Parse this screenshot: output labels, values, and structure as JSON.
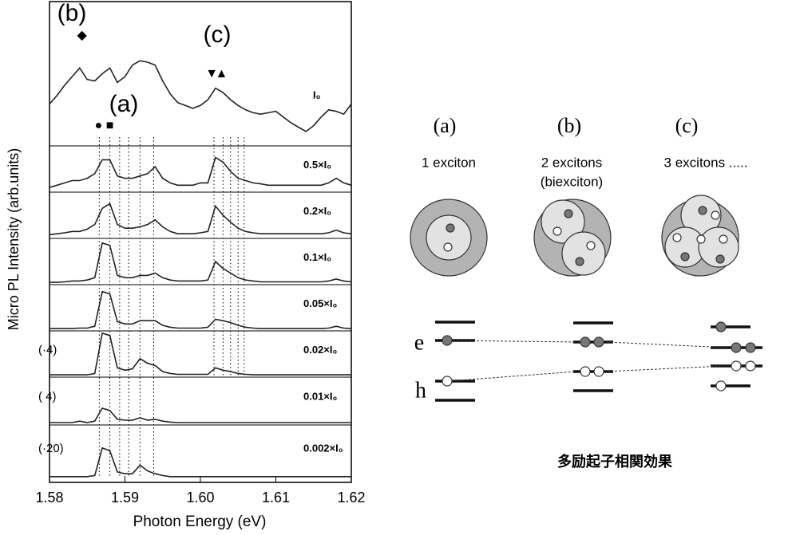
{
  "chart_data": {
    "type": "line",
    "x_label": "Photon Energy (eV)",
    "y_label": "Micro PL Intensity (arb.units)",
    "xlim": [
      1.58,
      1.62
    ],
    "xticks": [
      1.58,
      1.59,
      {
        "value": 1.6,
        "label": "1.60"
      },
      1.61,
      1.62
    ],
    "ylim": [
      0,
      100
    ],
    "color": "#222222",
    "x": [
      1.58,
      1.581,
      1.582,
      1.583,
      1.584,
      1.585,
      1.586,
      1.587,
      1.588,
      1.589,
      1.59,
      1.591,
      1.592,
      1.593,
      1.594,
      1.595,
      1.596,
      1.597,
      1.598,
      1.599,
      1.6,
      1.601,
      1.602,
      1.603,
      1.604,
      1.605,
      1.606,
      1.607,
      1.608,
      1.609,
      1.61,
      1.611,
      1.612,
      1.613,
      1.614,
      1.615,
      1.616,
      1.617,
      1.618,
      1.619,
      1.62
    ],
    "series": [
      {
        "name": "I₀",
        "values": [
          29,
          35,
          42,
          48,
          54,
          46,
          45,
          50,
          54,
          44,
          48,
          56,
          59,
          58,
          56,
          45,
          36,
          30,
          28,
          26,
          28,
          32,
          40,
          37,
          32,
          28,
          25,
          23,
          22,
          23,
          24,
          20,
          16,
          13,
          10,
          14,
          20,
          25,
          24,
          22,
          29
        ]
      },
      {
        "name": "0.5×I₀",
        "values": [
          10,
          15,
          20,
          25,
          25,
          30,
          40,
          70,
          70,
          35,
          30,
          30,
          35,
          40,
          55,
          30,
          20,
          15,
          15,
          15,
          20,
          20,
          75,
          65,
          45,
          30,
          25,
          20,
          18,
          15,
          15,
          15,
          15,
          15,
          15,
          15,
          15,
          20,
          30,
          20,
          15
        ]
      },
      {
        "name": "0.2×I₀",
        "values": [
          8,
          10,
          12,
          15,
          15,
          20,
          30,
          65,
          75,
          30,
          22,
          22,
          25,
          30,
          40,
          25,
          15,
          10,
          10,
          10,
          12,
          15,
          70,
          50,
          35,
          22,
          15,
          12,
          10,
          10,
          10,
          10,
          10,
          10,
          10,
          10,
          10,
          12,
          18,
          12,
          10
        ]
      },
      {
        "name": "0.1×I₀",
        "values": [
          5,
          5,
          6,
          8,
          8,
          10,
          15,
          90,
          85,
          20,
          15,
          15,
          20,
          20,
          25,
          15,
          10,
          8,
          8,
          8,
          8,
          10,
          50,
          35,
          25,
          15,
          10,
          8,
          6,
          6,
          6,
          6,
          6,
          6,
          6,
          6,
          6,
          8,
          12,
          8,
          6
        ]
      },
      {
        "name": "0.05×I₀",
        "values": [
          5,
          5,
          5,
          5,
          6,
          6,
          10,
          85,
          80,
          20,
          15,
          15,
          22,
          22,
          22,
          12,
          8,
          6,
          6,
          6,
          6,
          8,
          25,
          22,
          18,
          12,
          8,
          6,
          5,
          5,
          5,
          5,
          5,
          5,
          5,
          5,
          5,
          6,
          10,
          6,
          5
        ]
      },
      {
        "name": "0.02×I₀",
        "scale_label": "(·4)",
        "values": [
          5,
          5,
          5,
          5,
          5,
          5,
          8,
          95,
          90,
          20,
          15,
          18,
          40,
          30,
          25,
          12,
          8,
          6,
          6,
          6,
          6,
          6,
          20,
          15,
          12,
          8,
          6,
          5,
          5,
          5,
          5,
          5,
          5,
          5,
          5,
          5,
          5,
          5,
          5,
          5,
          5
        ]
      },
      {
        "name": "0.01×I₀",
        "scale_label": "( 4)",
        "values": [
          5,
          5,
          5,
          5,
          8,
          5,
          8,
          35,
          30,
          12,
          10,
          10,
          15,
          10,
          12,
          8,
          6,
          5,
          5,
          5,
          5,
          5,
          5,
          5,
          5,
          5,
          5,
          5,
          5,
          5,
          5,
          5,
          5,
          5,
          5,
          5,
          5,
          5,
          5,
          5,
          5
        ]
      },
      {
        "name": "0.002×I₀",
        "scale_label": "(·20)",
        "values": [
          10,
          10,
          10,
          10,
          10,
          10,
          12,
          60,
          55,
          18,
          15,
          15,
          30,
          20,
          15,
          12,
          10,
          10,
          10,
          10,
          10,
          10,
          10,
          10,
          10,
          10,
          10,
          10,
          10,
          10,
          10,
          10,
          10,
          10,
          10,
          10,
          10,
          10,
          10,
          10,
          10
        ]
      }
    ],
    "dotted_lines": [
      1.5866,
      1.588,
      1.5893,
      1.5905,
      1.592,
      1.5938,
      1.6018,
      1.603,
      1.604,
      1.605,
      1.6058
    ],
    "peak_markers": [
      {
        "symbol": "◆",
        "x": 1.5843
      },
      {
        "symbol": "●",
        "x": 1.5865
      },
      {
        "symbol": "■",
        "x": 1.588
      },
      {
        "symbol": "▼",
        "x": 1.6015
      },
      {
        "symbol": "▲",
        "x": 1.6028
      }
    ],
    "annotations": [
      "(b)",
      "(c)",
      "(a)"
    ]
  },
  "diagram": {
    "columns": [
      {
        "label": "(a)",
        "text": "1 exciton"
      },
      {
        "label": "(b)",
        "text": "2 excitons",
        "subtext": "(biexciton)"
      },
      {
        "label": "(c)",
        "text": "3 excitons ....."
      }
    ],
    "electron": "e",
    "hole": "h",
    "caption": "多励起子相関効果"
  }
}
